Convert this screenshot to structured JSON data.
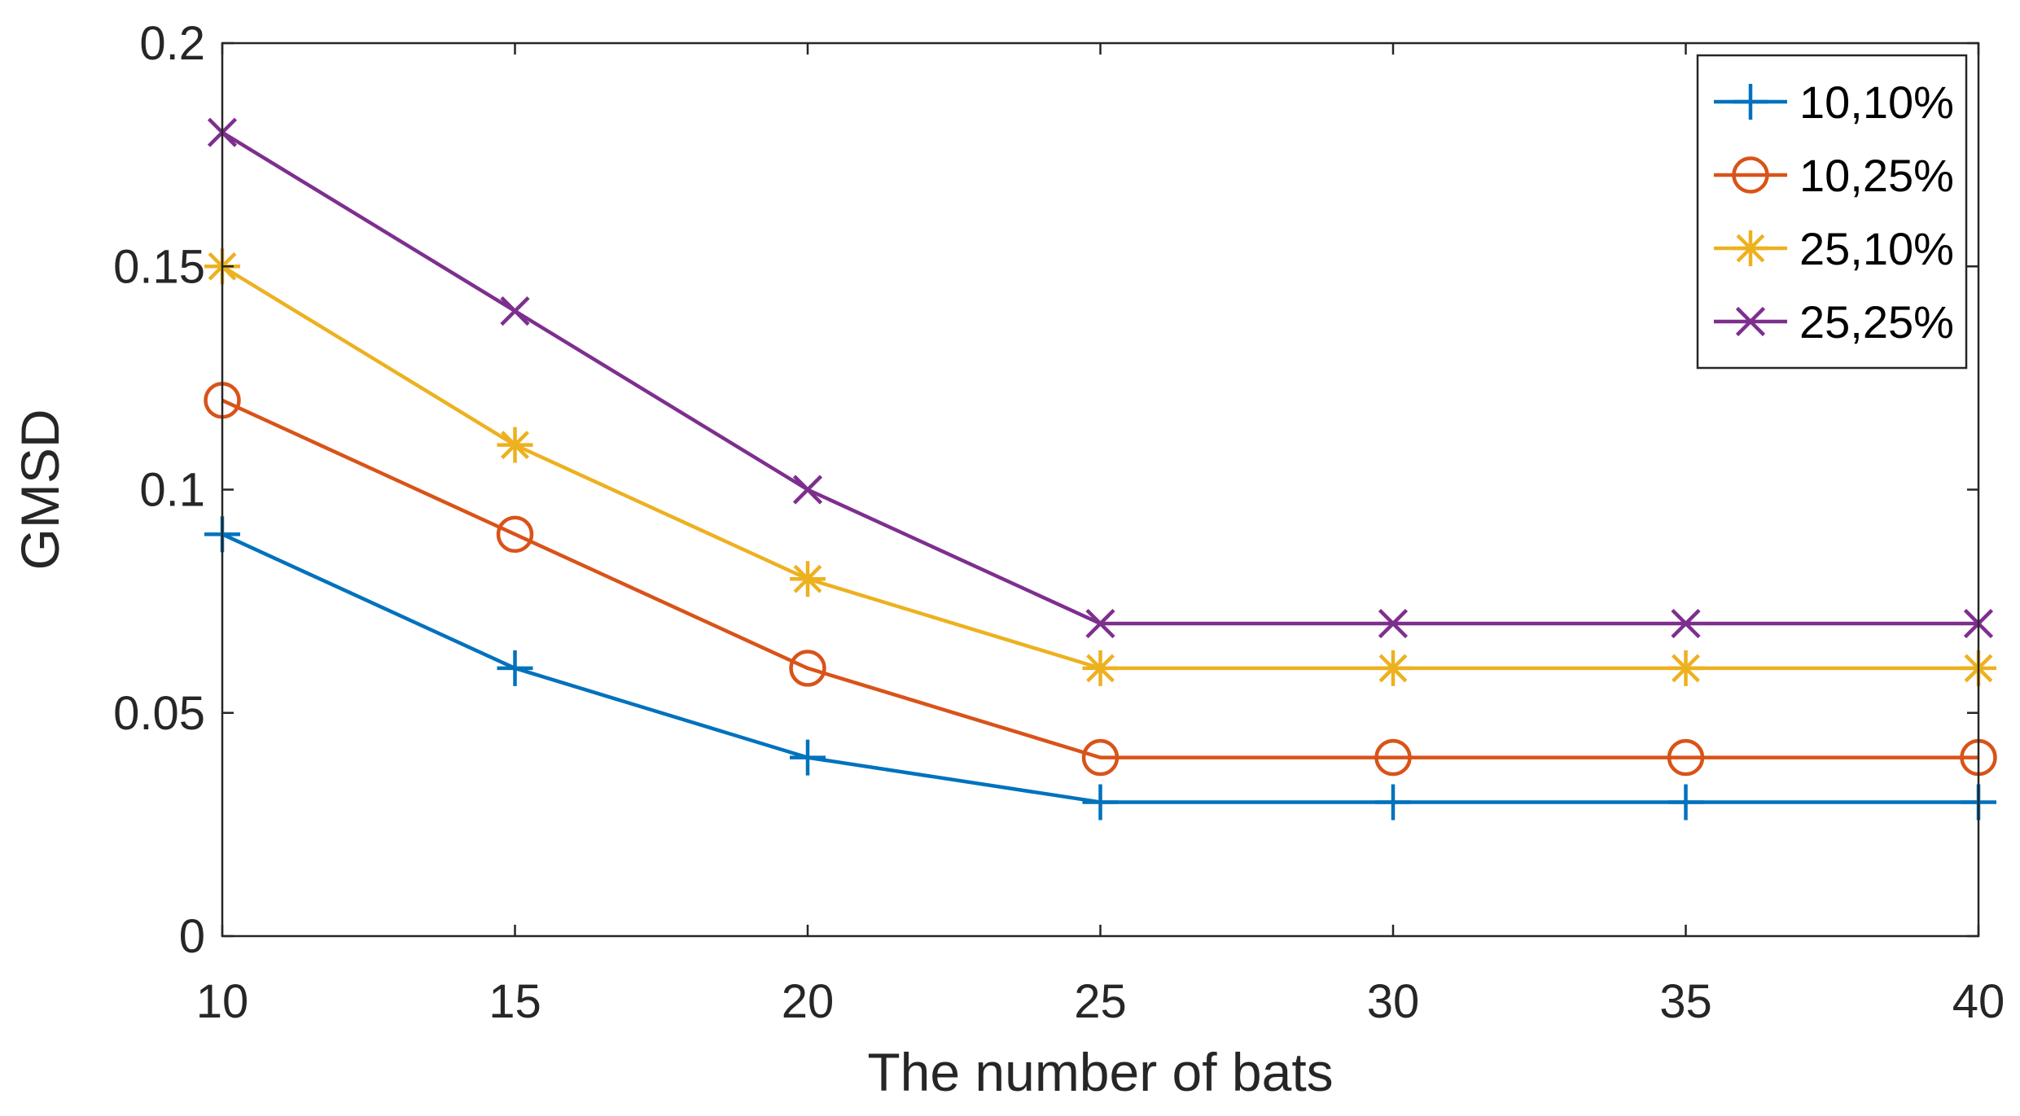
{
  "chart_data": {
    "type": "line",
    "title": "",
    "xlabel": "The number of bats",
    "ylabel": "GMSD",
    "x": [
      10,
      15,
      20,
      25,
      30,
      35,
      40
    ],
    "xlim": [
      10,
      40
    ],
    "ylim": [
      0,
      0.2
    ],
    "xticks": [
      10,
      15,
      20,
      25,
      30,
      35,
      40
    ],
    "yticks": [
      0,
      0.05,
      0.1,
      0.15,
      0.2
    ],
    "xtick_labels": [
      "10",
      "15",
      "20",
      "25",
      "30",
      "35",
      "40"
    ],
    "ytick_labels": [
      "0",
      "0.05",
      "0.1",
      "0.15",
      "0.2"
    ],
    "grid": false,
    "legend_position": "top-right",
    "series": [
      {
        "name": "10,10%",
        "color": "#0072BD",
        "marker": "plus",
        "values": [
          0.09,
          0.06,
          0.04,
          0.03,
          0.03,
          0.03,
          0.03
        ]
      },
      {
        "name": "10,25%",
        "color": "#D95319",
        "marker": "circle",
        "values": [
          0.12,
          0.09,
          0.06,
          0.04,
          0.04,
          0.04,
          0.04
        ]
      },
      {
        "name": "25,10%",
        "color": "#EDB120",
        "marker": "asterisk",
        "values": [
          0.15,
          0.11,
          0.08,
          0.06,
          0.06,
          0.06,
          0.06
        ]
      },
      {
        "name": "25,25%",
        "color": "#7E2F8E",
        "marker": "x",
        "values": [
          0.18,
          0.14,
          0.1,
          0.07,
          0.07,
          0.07,
          0.07
        ]
      }
    ]
  }
}
